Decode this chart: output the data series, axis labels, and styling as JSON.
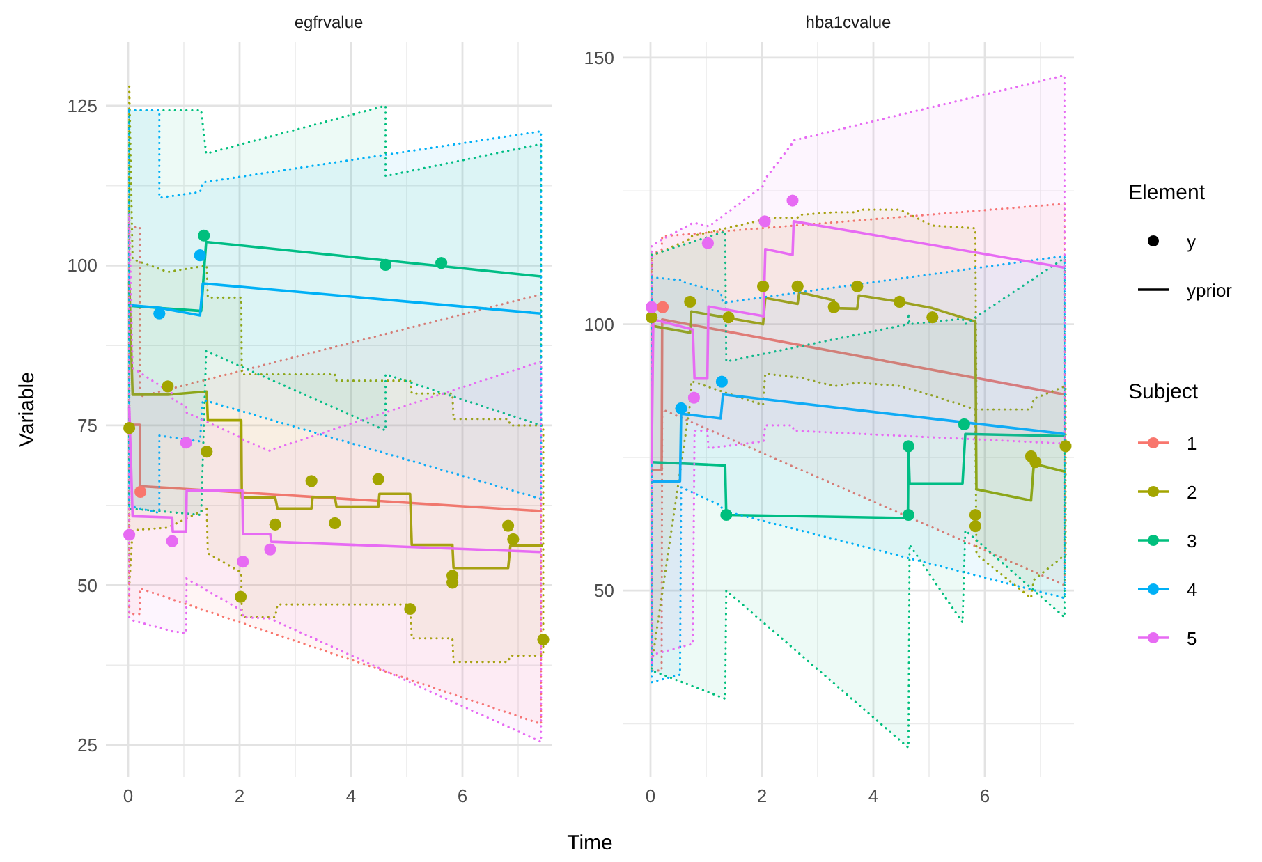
{
  "chart_data": [
    {
      "type": "line",
      "title": "egfrvalue",
      "xlabel": "Time",
      "ylabel": "Variable",
      "xlim": [
        -0.4,
        7.6
      ],
      "ylim": [
        20,
        135
      ],
      "xticks": [
        0,
        2,
        4,
        6
      ],
      "yticks": [
        25,
        50,
        75,
        100,
        125
      ],
      "grid": true,
      "legend": false,
      "series": [
        {
          "type": "scatter",
          "color": "#f8766d",
          "x": [
            0.22
          ],
          "values": [
            64.6
          ]
        },
        {
          "type": "scatter",
          "color": "#a3a500",
          "x": [
            0.02,
            0.71,
            1.41,
            2.02,
            2.64,
            3.29,
            3.71,
            4.49,
            5.06,
            5.82,
            5.82,
            6.82,
            6.91,
            7.45
          ],
          "values": [
            74.6,
            81.1,
            70.9,
            48.2,
            59.5,
            66.3,
            59.7,
            66.6,
            46.3,
            51.5,
            50.4,
            59.3,
            57.2,
            41.5
          ]
        },
        {
          "type": "scatter",
          "color": "#00bf7d",
          "x": [
            1.36,
            4.62,
            5.62
          ],
          "values": [
            104.7,
            100.1,
            100.4
          ]
        },
        {
          "type": "scatter",
          "color": "#00b0f6",
          "x": [
            0.56,
            1.29
          ],
          "values": [
            92.5,
            101.6
          ]
        },
        {
          "type": "scatter",
          "color": "#e76bf3",
          "x": [
            0.02,
            0.79,
            1.04,
            2.06,
            2.55
          ],
          "values": [
            57.9,
            56.9,
            72.3,
            53.7,
            55.6
          ]
        },
        {
          "type": "line",
          "color": "#f8766d",
          "x": [
            0.02,
            0.21,
            0.21,
            7.41
          ],
          "values": [
            75.1,
            75.1,
            65.5,
            61.6
          ],
          "upper": [
            106,
            106,
            79.5,
            95.5
          ],
          "lower": [
            45.5,
            45.5,
            49.5,
            28.3
          ]
        },
        {
          "type": "line",
          "color": "#a3a500",
          "x": [
            0.02,
            0.08,
            0.71,
            1.41,
            1.43,
            2.03,
            2.04,
            2.64,
            2.68,
            3.29,
            3.31,
            3.71,
            3.74,
            4.49,
            4.51,
            5.06,
            5.09,
            5.82,
            5.84,
            6.82,
            6.86,
            7.45
          ],
          "values": [
            97.4,
            79.8,
            79.8,
            80.3,
            75.8,
            75.8,
            63.7,
            63.7,
            62.0,
            62.0,
            63.8,
            63.8,
            62.3,
            62.3,
            64.3,
            64.3,
            56.3,
            56.3,
            52.7,
            52.7,
            56.2,
            56.2
          ],
          "upper": [
            128,
            101,
            99,
            100,
            95,
            95,
            83,
            83,
            83,
            83,
            83,
            83,
            82,
            82,
            82,
            82,
            80,
            80,
            76,
            76,
            75,
            75
          ],
          "lower": [
            50,
            58.6,
            59,
            62,
            55,
            52,
            45,
            45,
            47,
            47,
            47,
            47,
            47,
            47,
            47,
            47,
            41.7,
            41.7,
            38,
            38,
            39,
            39
          ]
        },
        {
          "type": "line",
          "color": "#00bf7d",
          "x": [
            0.02,
            1.31,
            1.4,
            4.62,
            4.62,
            7.41
          ],
          "values": [
            93.7,
            92.9,
            103.7,
            100.8,
            100.8,
            98.3
          ],
          "upper": [
            124.3,
            124.3,
            117.5,
            125,
            114,
            119
          ],
          "lower": [
            62,
            61,
            86.6,
            74.2,
            83,
            75
          ]
        },
        {
          "type": "line",
          "color": "#00b0f6",
          "x": [
            0.02,
            0.56,
            0.56,
            1.29,
            1.34,
            7.41
          ],
          "values": [
            93.8,
            93.4,
            93.4,
            92.2,
            97.2,
            92.5
          ],
          "upper": [
            124.3,
            124.3,
            110.6,
            111.5,
            113,
            121
          ],
          "lower": [
            62.4,
            61.3,
            73.4,
            72.5,
            79,
            63.5
          ]
        },
        {
          "type": "line",
          "color": "#e76bf3",
          "x": [
            0.02,
            0.08,
            0.79,
            0.8,
            1.04,
            1.05,
            2.05,
            2.06,
            2.55,
            2.57,
            7.41
          ],
          "values": [
            77.8,
            60.8,
            60.6,
            58.4,
            58.4,
            64.8,
            64.8,
            58.0,
            58.0,
            56.8,
            55.2
          ],
          "upper": [
            108,
            84,
            80,
            79,
            78,
            77,
            73,
            72.8,
            71,
            71.2,
            85
          ],
          "lower": [
            45,
            44.5,
            42.8,
            42.8,
            42.5,
            51,
            46,
            45,
            44.8,
            44.7,
            25.5
          ]
        }
      ]
    },
    {
      "type": "line",
      "title": "hba1cvalue",
      "xlim": [
        -0.5,
        7.6
      ],
      "ylim": [
        15,
        153
      ],
      "xticks": [
        0,
        2,
        4,
        6
      ],
      "yticks": [
        50,
        100,
        150
      ],
      "grid": true,
      "legend": "right",
      "legend_title": "Subject",
      "annotations": [
        "Element",
        "y",
        "yprior"
      ],
      "series": [
        {
          "type": "scatter",
          "color": "#f8766d",
          "x": [
            0.22
          ],
          "values": [
            103.2
          ]
        },
        {
          "type": "scatter",
          "color": "#a3a500",
          "x": [
            0.02,
            0.71,
            1.4,
            2.02,
            2.64,
            3.29,
            3.71,
            4.47,
            5.06,
            5.83,
            5.83,
            6.83,
            6.91,
            7.45
          ],
          "values": [
            101.3,
            104.2,
            101.3,
            107.1,
            107.1,
            103.2,
            107.1,
            104.2,
            101.3,
            64.2,
            62.1,
            75.2,
            74.1,
            77.1
          ]
        },
        {
          "type": "scatter",
          "color": "#00bf7d",
          "x": [
            1.36,
            4.63,
            4.63,
            5.63
          ],
          "values": [
            64.2,
            77.1,
            64.2,
            81.2
          ]
        },
        {
          "type": "scatter",
          "color": "#00b0f6",
          "x": [
            0.55,
            1.28
          ],
          "values": [
            84.2,
            89.2
          ]
        },
        {
          "type": "scatter",
          "color": "#e76bf3",
          "x": [
            0.02,
            0.78,
            1.03,
            2.05,
            2.55
          ],
          "values": [
            103.2,
            86.2,
            115.2,
            119.3,
            123.2
          ]
        },
        {
          "type": "line",
          "name": "1",
          "color": "#f8766d",
          "x": [
            0.02,
            0.2,
            0.21,
            7.43
          ],
          "values": [
            72.6,
            72.6,
            100.9,
            86.8
          ],
          "upper": [
            113,
            114,
            116.5,
            122.6
          ],
          "lower": [
            35,
            35,
            84,
            51
          ]
        },
        {
          "type": "line",
          "name": "2",
          "color": "#a3a500",
          "x": [
            0.02,
            0.71,
            0.73,
            2.02,
            2.06,
            2.64,
            2.67,
            3.29,
            3.31,
            3.71,
            3.74,
            4.47,
            5.06,
            5.83,
            5.85,
            6.83,
            6.88,
            7.45
          ],
          "values": [
            99.7,
            98.4,
            102.4,
            100,
            104.9,
            103.8,
            106,
            104.5,
            103,
            102.9,
            105.4,
            104.2,
            103,
            100.5,
            69,
            66.9,
            73.8,
            72.3
          ],
          "upper": [
            112.8,
            116,
            116.5,
            119.6,
            120,
            120,
            120.5,
            121,
            121,
            121,
            121.5,
            121.5,
            118.5,
            118,
            84,
            84,
            86,
            88.4
          ],
          "lower": [
            36,
            85,
            89.3,
            84.8,
            90.7,
            90,
            90,
            88.4,
            88.4,
            89,
            89,
            88.4,
            86.6,
            84,
            56.8,
            48.6,
            52,
            56.8
          ]
        },
        {
          "type": "line",
          "name": "3",
          "color": "#00bf7d",
          "x": [
            0.02,
            1.34,
            1.36,
            4.62,
            4.63,
            4.65,
            5.6,
            5.65,
            7.43
          ],
          "values": [
            74.1,
            73.5,
            64.2,
            63.6,
            77.1,
            70.1,
            70.1,
            79.4,
            79.0
          ],
          "upper": [
            113,
            117.4,
            93,
            100,
            102,
            100,
            101,
            100,
            112.4
          ],
          "lower": [
            35,
            29.7,
            50,
            20.6,
            20.6,
            58.6,
            44,
            61.3,
            45
          ]
        },
        {
          "type": "line",
          "name": "4",
          "color": "#00b0f6",
          "x": [
            0.02,
            0.53,
            0.55,
            1.26,
            1.3,
            7.43
          ],
          "values": [
            70.5,
            70.5,
            83.2,
            82.3,
            86.8,
            79.4
          ],
          "upper": [
            108.8,
            108.3,
            108,
            106,
            104,
            112.8
          ],
          "lower": [
            32.8,
            34.2,
            69.4,
            66,
            65,
            48.6
          ]
        },
        {
          "type": "line",
          "name": "5",
          "color": "#e76bf3",
          "x": [
            0.02,
            0.05,
            0.76,
            0.79,
            1.02,
            1.04,
            2.03,
            2.06,
            2.55,
            2.57,
            7.43
          ],
          "values": [
            74,
            100.9,
            99,
            89.8,
            89.8,
            103.3,
            101.5,
            114.1,
            113,
            119.3,
            110.6
          ],
          "upper": [
            114.6,
            115,
            119,
            119,
            118.5,
            118.3,
            126,
            127.3,
            134,
            134.5,
            146.7
          ],
          "lower": [
            36,
            38,
            40,
            80,
            80,
            76.7,
            78,
            81,
            81,
            80,
            77.6
          ]
        }
      ]
    }
  ]
}
